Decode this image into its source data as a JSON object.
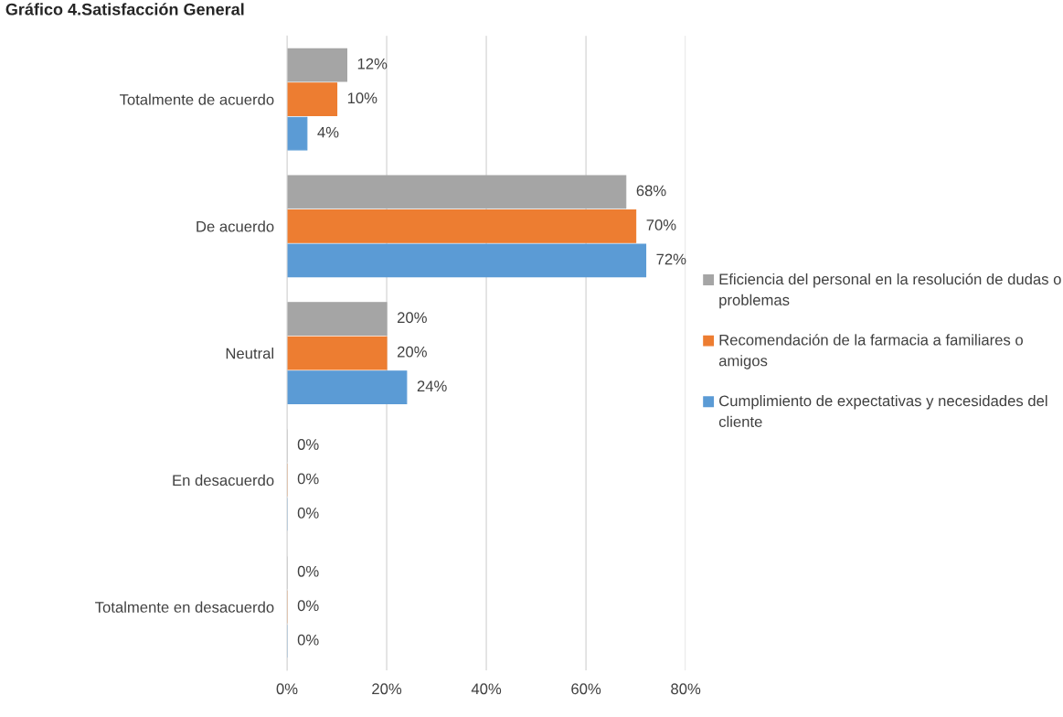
{
  "chart_data": {
    "type": "bar",
    "orientation": "horizontal",
    "title": "Gráfico 4.Satisfacción General",
    "categories": [
      "Totalmente de acuerdo",
      "De acuerdo",
      "Neutral",
      "En desacuerdo",
      "Totalmente en desacuerdo"
    ],
    "series": [
      {
        "name": "Eficiencia del personal en la resolución de dudas o problemas",
        "color": "#a5a5a5",
        "values": [
          12,
          68,
          20,
          0,
          0
        ],
        "value_labels": [
          "12%",
          "68%",
          "20%",
          "0%",
          "0%"
        ]
      },
      {
        "name": "Recomendación de la farmacia a familiares o amigos",
        "color": "#ed7d31",
        "values": [
          10,
          70,
          20,
          0,
          0
        ],
        "value_labels": [
          "10%",
          "70%",
          "20%",
          "0%",
          "0%"
        ]
      },
      {
        "name": "Cumplimiento de expectativas y necesidades del cliente",
        "color": "#5b9bd5",
        "values": [
          4,
          72,
          24,
          0,
          0
        ],
        "value_labels": [
          "4%",
          "72%",
          "24%",
          "0%",
          "0%"
        ]
      }
    ],
    "xlim": [
      0,
      80
    ],
    "xticks": [
      {
        "value": 0,
        "label": "0%"
      },
      {
        "value": 20,
        "label": "20%"
      },
      {
        "value": 40,
        "label": "40%"
      },
      {
        "value": 60,
        "label": "60%"
      },
      {
        "value": 80,
        "label": "80%"
      }
    ],
    "grid": "x",
    "legend": "right"
  }
}
